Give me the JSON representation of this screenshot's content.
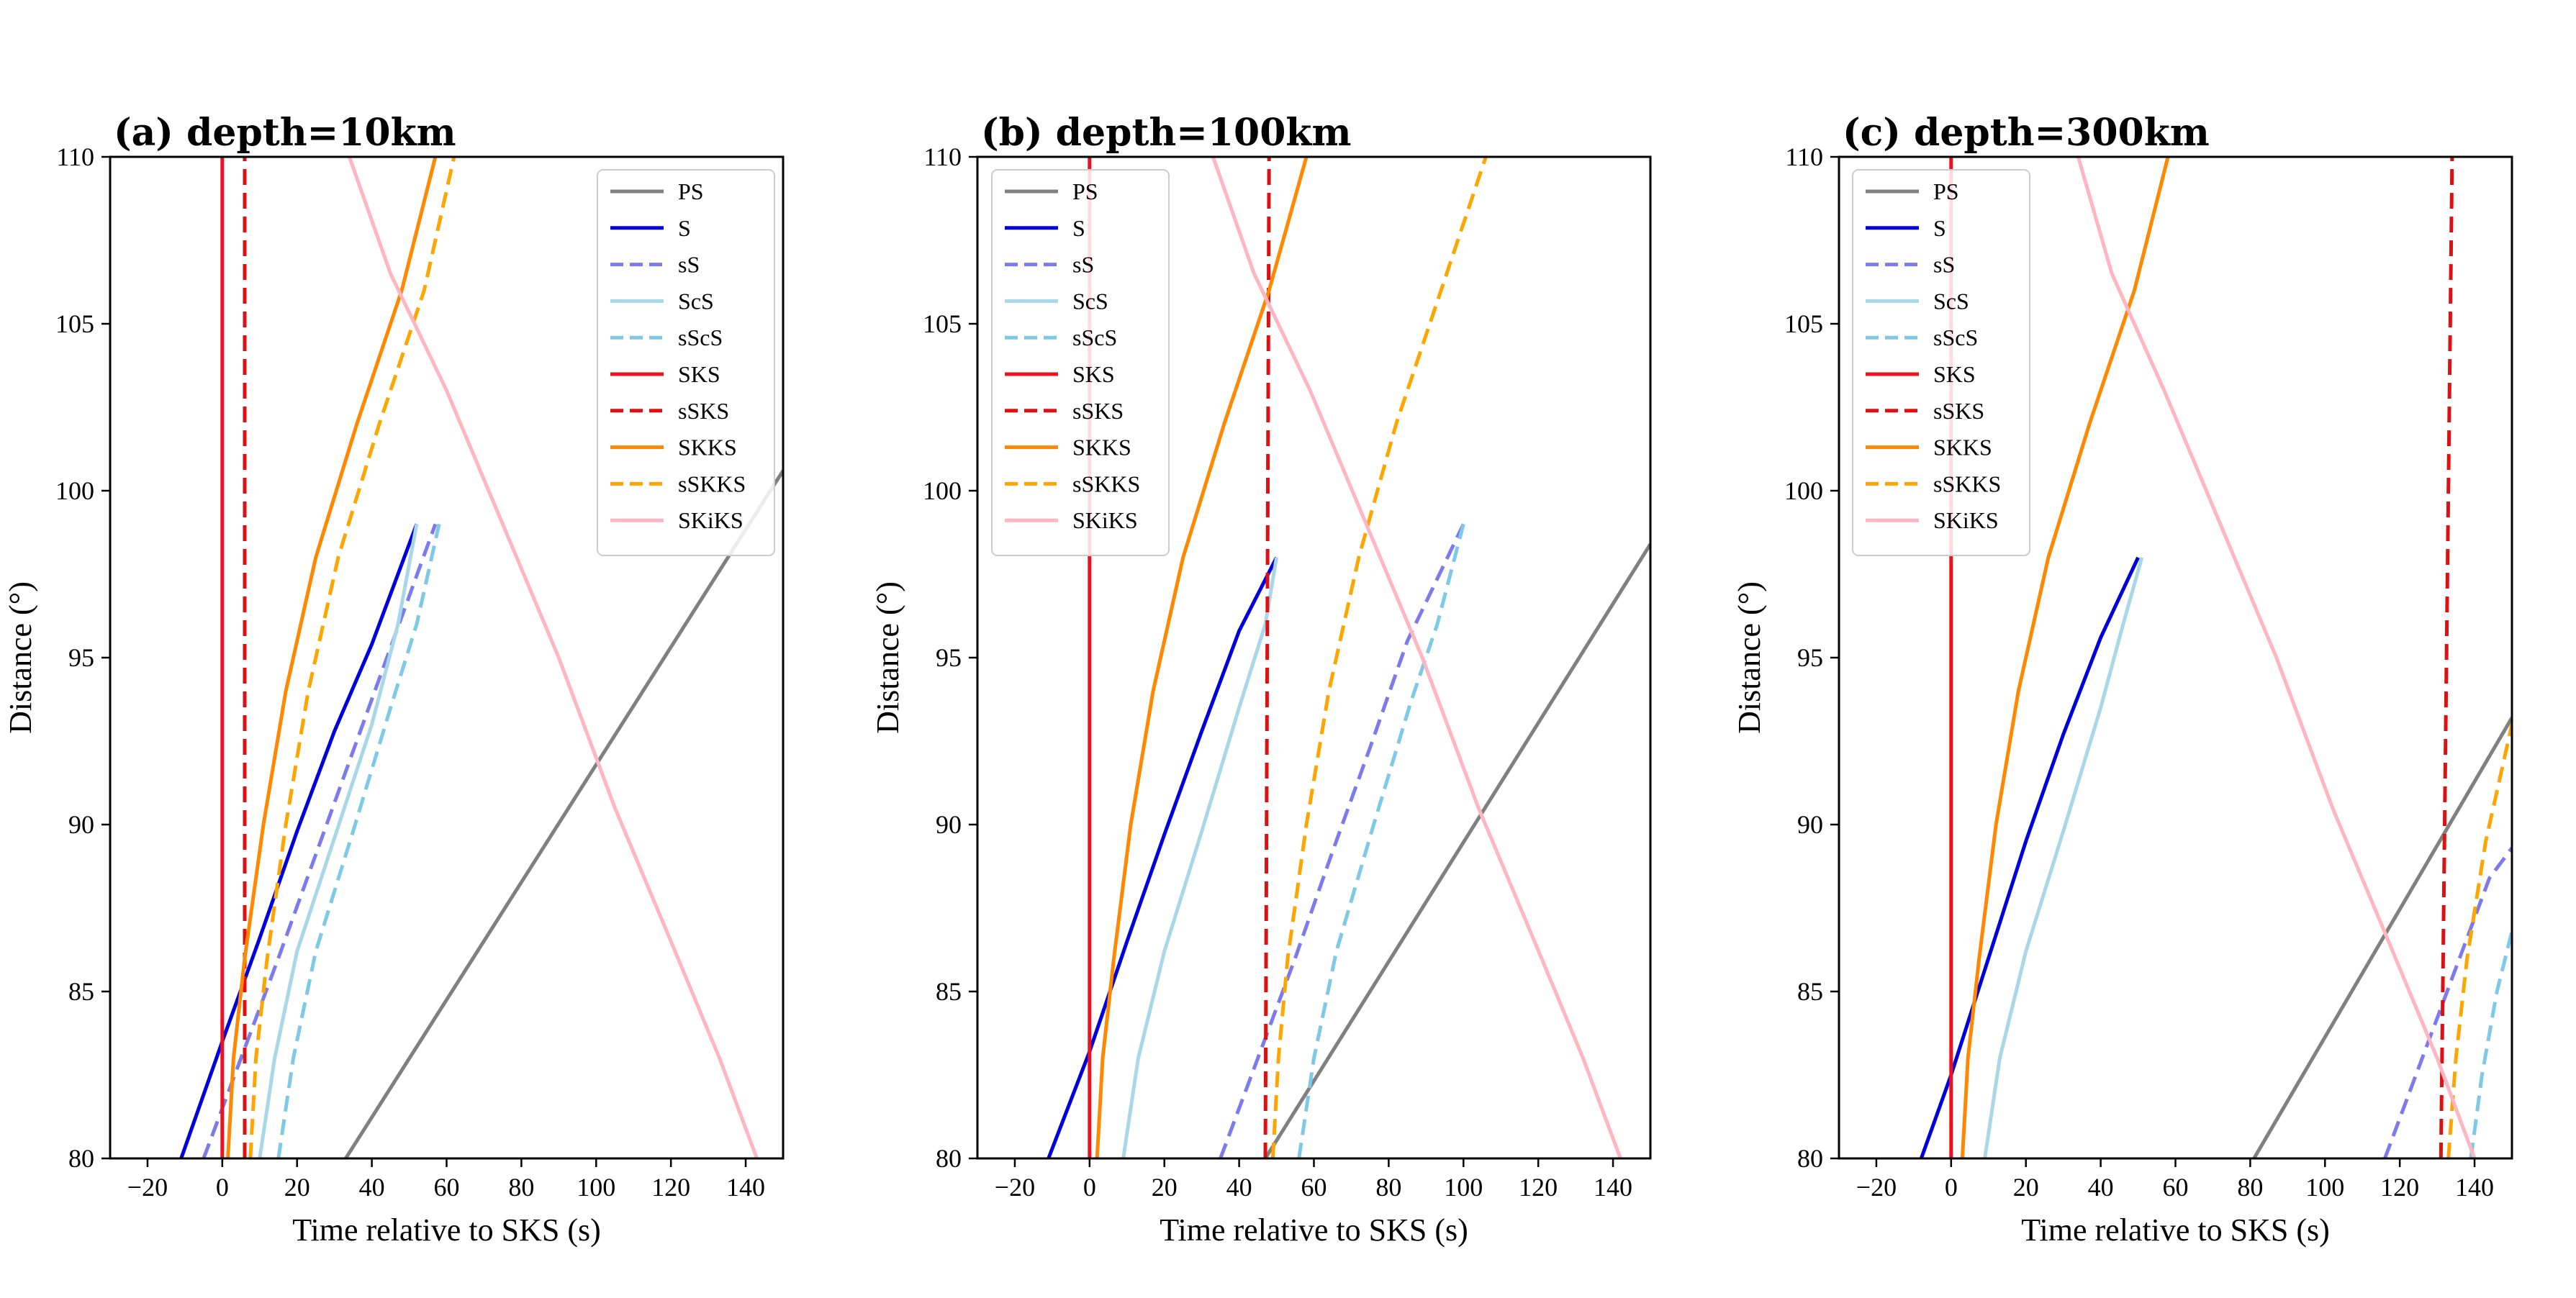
{
  "chart_data": [
    {
      "type": "line",
      "title": "(a) depth=10km",
      "xlabel": "Time relative to SKS (s)",
      "ylabel": "Distance (°)",
      "xlim": [
        -30,
        150
      ],
      "ylim": [
        80,
        110
      ],
      "xticks": [
        -20,
        0,
        20,
        40,
        60,
        80,
        100,
        120,
        140
      ],
      "yticks": [
        80,
        85,
        90,
        95,
        100,
        105,
        110
      ],
      "legend_position": "upper-right",
      "series": [
        {
          "name": "PS",
          "color": "#808080",
          "dash": "solid",
          "points": [
            [
              33,
              80
            ],
            [
              150,
              100.6
            ]
          ]
        },
        {
          "name": "S",
          "color": "#0000dd",
          "dash": "solid",
          "points": [
            [
              -11,
              80
            ],
            [
              0,
              83.5
            ],
            [
              10,
              86.6
            ],
            [
              20,
              89.8
            ],
            [
              30,
              92.8
            ],
            [
              40,
              95.4
            ],
            [
              52,
              99
            ]
          ]
        },
        {
          "name": "sS",
          "color": "#7b7bee",
          "dash": "dashed",
          "points": [
            [
              -5,
              80
            ],
            [
              5,
              83
            ],
            [
              15,
              86
            ],
            [
              25,
              89.1
            ],
            [
              35,
              92.2
            ],
            [
              45,
              95.3
            ],
            [
              57,
              99
            ]
          ]
        },
        {
          "name": "ScS",
          "color": "#a8d8e8",
          "dash": "solid",
          "points": [
            [
              10,
              80
            ],
            [
              14,
              83
            ],
            [
              20,
              86.2
            ],
            [
              30,
              89.6
            ],
            [
              40,
              93
            ],
            [
              47,
              96
            ],
            [
              52,
              99
            ]
          ]
        },
        {
          "name": "sScS",
          "color": "#7ec8e8",
          "dash": "dashed",
          "points": [
            [
              15,
              80
            ],
            [
              19,
              83
            ],
            [
              25,
              86.2
            ],
            [
              35,
              89.8
            ],
            [
              45,
              93.5
            ],
            [
              52,
              96
            ],
            [
              58,
              99
            ]
          ]
        },
        {
          "name": "SKS",
          "color": "#ee1122",
          "dash": "solid",
          "points": [
            [
              0,
              80
            ],
            [
              0,
              110
            ]
          ]
        },
        {
          "name": "sSKS",
          "color": "#dd1111",
          "dash": "dashed",
          "points": [
            [
              6,
              80
            ],
            [
              6,
              110
            ]
          ]
        },
        {
          "name": "SKKS",
          "color": "#ff8800",
          "dash": "solid",
          "points": [
            [
              1.5,
              80
            ],
            [
              3,
              83
            ],
            [
              6,
              86
            ],
            [
              11,
              90
            ],
            [
              17,
              94
            ],
            [
              25,
              98
            ],
            [
              36,
              102
            ],
            [
              48,
              106
            ],
            [
              57,
              110
            ]
          ]
        },
        {
          "name": "sSKKS",
          "color": "#ffa500",
          "dash": "dashed",
          "points": [
            [
              7.5,
              80
            ],
            [
              9,
              83
            ],
            [
              12,
              86
            ],
            [
              17,
              90
            ],
            [
              23,
              94
            ],
            [
              31,
              98
            ],
            [
              42,
              102
            ],
            [
              54,
              106
            ],
            [
              62,
              110
            ]
          ]
        },
        {
          "name": "SKiKS",
          "color": "#ffb6c1",
          "dash": "solid",
          "points": [
            [
              143,
              80
            ],
            [
              133,
              83
            ],
            [
              120,
              86.5
            ],
            [
              105,
              90.5
            ],
            [
              90,
              95
            ],
            [
              75,
              99
            ],
            [
              60,
              103
            ],
            [
              45,
              106.5
            ],
            [
              34,
              110
            ]
          ]
        }
      ]
    },
    {
      "type": "line",
      "title": "(b) depth=100km",
      "xlabel": "Time relative to SKS (s)",
      "ylabel": "Distance (°)",
      "xlim": [
        -30,
        150
      ],
      "ylim": [
        80,
        110
      ],
      "xticks": [
        -20,
        0,
        20,
        40,
        60,
        80,
        100,
        120,
        140
      ],
      "yticks": [
        80,
        85,
        90,
        95,
        100,
        105,
        110
      ],
      "legend_position": "upper-left",
      "series": [
        {
          "name": "PS",
          "color": "#808080",
          "dash": "solid",
          "points": [
            [
              47,
              80
            ],
            [
              150,
              98.4
            ]
          ]
        },
        {
          "name": "S",
          "color": "#0000dd",
          "dash": "solid",
          "points": [
            [
              -11,
              80
            ],
            [
              0,
              83.2
            ],
            [
              10,
              86.5
            ],
            [
              20,
              89.7
            ],
            [
              30,
              92.8
            ],
            [
              40,
              95.8
            ],
            [
              50,
              98
            ]
          ]
        },
        {
          "name": "sS",
          "color": "#7b7bee",
          "dash": "dashed",
          "points": [
            [
              35,
              80
            ],
            [
              45,
              83
            ],
            [
              55,
              86
            ],
            [
              65,
              89.2
            ],
            [
              75,
              92.3
            ],
            [
              85,
              95.5
            ],
            [
              100,
              99
            ]
          ]
        },
        {
          "name": "ScS",
          "color": "#a8d8e8",
          "dash": "solid",
          "points": [
            [
              9,
              80
            ],
            [
              13,
              83
            ],
            [
              20,
              86.2
            ],
            [
              30,
              89.8
            ],
            [
              40,
              93.5
            ],
            [
              47,
              96
            ],
            [
              50,
              98
            ]
          ]
        },
        {
          "name": "sScS",
          "color": "#7ec8e8",
          "dash": "dashed",
          "points": [
            [
              56,
              80
            ],
            [
              60,
              83
            ],
            [
              66,
              86.2
            ],
            [
              76,
              90
            ],
            [
              86,
              93.7
            ],
            [
              93,
              96
            ],
            [
              100,
              99
            ]
          ]
        },
        {
          "name": "SKS",
          "color": "#ee1122",
          "dash": "solid",
          "points": [
            [
              0,
              80
            ],
            [
              0,
              110
            ]
          ]
        },
        {
          "name": "sSKS",
          "color": "#dd1111",
          "dash": "dashed",
          "points": [
            [
              47,
              80
            ],
            [
              48,
              110
            ]
          ]
        },
        {
          "name": "SKKS",
          "color": "#ff8800",
          "dash": "solid",
          "points": [
            [
              2,
              80
            ],
            [
              3.5,
              83
            ],
            [
              6.5,
              86
            ],
            [
              11,
              90
            ],
            [
              17,
              94
            ],
            [
              25,
              98
            ],
            [
              36,
              102
            ],
            [
              48,
              106
            ],
            [
              58,
              110
            ]
          ]
        },
        {
          "name": "sSKKS",
          "color": "#ffa500",
          "dash": "dashed",
          "points": [
            [
              49,
              80
            ],
            [
              50.5,
              83
            ],
            [
              53,
              86
            ],
            [
              58,
              90
            ],
            [
              64,
              94
            ],
            [
              72,
              98
            ],
            [
              82,
              102
            ],
            [
              94,
              106
            ],
            [
              106,
              110
            ]
          ]
        },
        {
          "name": "SKiKS",
          "color": "#ffb6c1",
          "dash": "solid",
          "points": [
            [
              142,
              80
            ],
            [
              132,
              83
            ],
            [
              119,
              86.5
            ],
            [
              104,
              90.5
            ],
            [
              89,
              95
            ],
            [
              74,
              99
            ],
            [
              59,
              103
            ],
            [
              44,
              106.5
            ],
            [
              33,
              110
            ]
          ]
        }
      ]
    },
    {
      "type": "line",
      "title": "(c) depth=300km",
      "xlabel": "Time relative to SKS (s)",
      "ylabel": "Distance (°)",
      "xlim": [
        -30,
        150
      ],
      "ylim": [
        80,
        110
      ],
      "xticks": [
        -20,
        0,
        20,
        40,
        60,
        80,
        100,
        120,
        140
      ],
      "yticks": [
        80,
        85,
        90,
        95,
        100,
        105,
        110
      ],
      "legend_position": "upper-left",
      "series": [
        {
          "name": "PS",
          "color": "#808080",
          "dash": "solid",
          "points": [
            [
              81,
              80
            ],
            [
              150,
              93.2
            ]
          ]
        },
        {
          "name": "S",
          "color": "#0000dd",
          "dash": "solid",
          "points": [
            [
              -8,
              80
            ],
            [
              0,
              82.5
            ],
            [
              10,
              86
            ],
            [
              20,
              89.5
            ],
            [
              30,
              92.7
            ],
            [
              40,
              95.6
            ],
            [
              50,
              98
            ]
          ]
        },
        {
          "name": "sS",
          "color": "#7b7bee",
          "dash": "dashed",
          "points": [
            [
              116,
              80
            ],
            [
              126,
              83
            ],
            [
              136,
              86
            ],
            [
              144,
              88.4
            ],
            [
              150,
              89.3
            ]
          ]
        },
        {
          "name": "ScS",
          "color": "#a8d8e8",
          "dash": "solid",
          "points": [
            [
              9,
              80
            ],
            [
              13,
              83
            ],
            [
              20,
              86.2
            ],
            [
              30,
              89.8
            ],
            [
              40,
              93.5
            ],
            [
              46,
              96
            ],
            [
              51,
              98
            ]
          ]
        },
        {
          "name": "sScS",
          "color": "#7ec8e8",
          "dash": "dashed",
          "points": [
            [
              139,
              80
            ],
            [
              142,
              82.5
            ],
            [
              146,
              85
            ],
            [
              150,
              86.8
            ]
          ]
        },
        {
          "name": "SKS",
          "color": "#ee1122",
          "dash": "solid",
          "points": [
            [
              0,
              80
            ],
            [
              0,
              110
            ]
          ]
        },
        {
          "name": "sSKS",
          "color": "#dd1111",
          "dash": "dashed",
          "points": [
            [
              131,
              80
            ],
            [
              134,
              110
            ]
          ]
        },
        {
          "name": "SKKS",
          "color": "#ff8800",
          "dash": "solid",
          "points": [
            [
              3,
              80
            ],
            [
              4.5,
              83
            ],
            [
              7.5,
              86
            ],
            [
              12,
              90
            ],
            [
              18,
              94
            ],
            [
              26,
              98
            ],
            [
              37,
              102
            ],
            [
              49,
              106
            ],
            [
              58,
              110
            ]
          ]
        },
        {
          "name": "sSKKS",
          "color": "#ffa500",
          "dash": "dashed",
          "points": [
            [
              133,
              80
            ],
            [
              135,
              83
            ],
            [
              138,
              86
            ],
            [
              143,
              89.5
            ],
            [
              150,
              93
            ]
          ]
        },
        {
          "name": "SKiKS",
          "color": "#ffb6c1",
          "dash": "solid",
          "points": [
            [
              140,
              80
            ],
            [
              130,
              83
            ],
            [
              117,
              86.5
            ],
            [
              102,
              90.5
            ],
            [
              87,
              95
            ],
            [
              72,
              99
            ],
            [
              57,
              103
            ],
            [
              43,
              106.5
            ],
            [
              34,
              110
            ]
          ]
        }
      ]
    }
  ]
}
